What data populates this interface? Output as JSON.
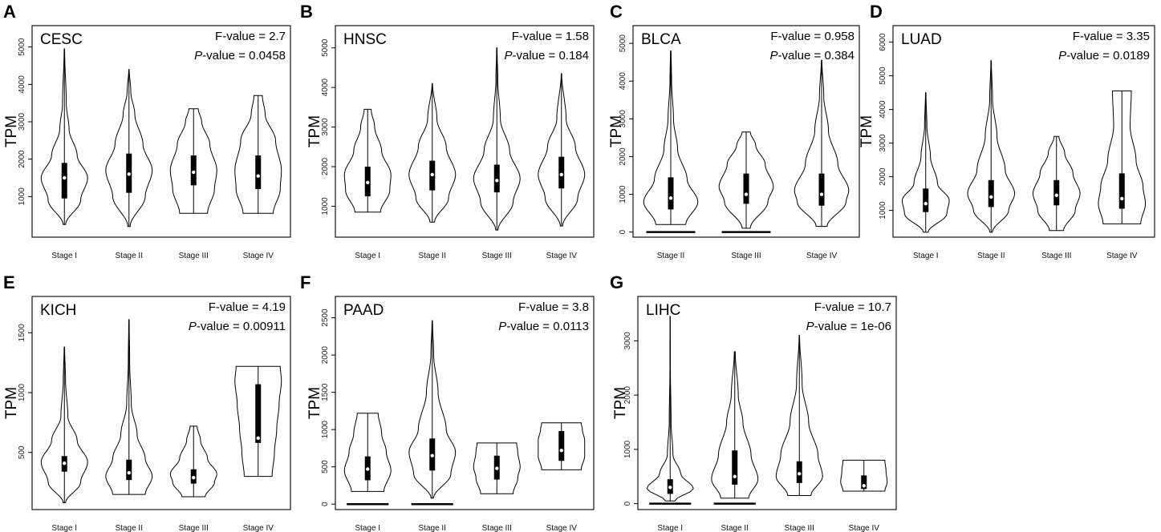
{
  "chart_data": [
    {
      "label": "A",
      "type": "violin",
      "title": "CESC",
      "f_text": "F-value = 2.7",
      "p_text": "-value = 0.0458",
      "p_italic": "P",
      "ylabel": "TPM",
      "ylim": [
        0,
        5400
      ],
      "yticks": [
        1000,
        2000,
        3000,
        4000,
        5000
      ],
      "y_tick_labels": [
        "1000",
        "2000",
        "3000",
        "4000",
        "5000"
      ],
      "categories": [
        "Stage I",
        "Stage II",
        "Stage III",
        "Stage IV"
      ],
      "groups": [
        {
          "min": 250,
          "q1": 950,
          "median": 1500,
          "q3": 1900,
          "max": 4950,
          "shape": [
            [
              250,
              0.05
            ],
            [
              900,
              0.7
            ],
            [
              1500,
              1
            ],
            [
              2100,
              0.55
            ],
            [
              2800,
              0.2
            ],
            [
              3500,
              0.08
            ],
            [
              4950,
              0.01
            ]
          ]
        },
        {
          "min": 200,
          "q1": 1100,
          "median": 1600,
          "q3": 2150,
          "max": 4400,
          "shape": [
            [
              200,
              0.05
            ],
            [
              1000,
              0.7
            ],
            [
              1700,
              1
            ],
            [
              2400,
              0.6
            ],
            [
              3200,
              0.25
            ],
            [
              3800,
              0.08
            ],
            [
              4400,
              0.01
            ]
          ]
        },
        {
          "min": 550,
          "q1": 1300,
          "median": 1650,
          "q3": 2100,
          "max": 3350,
          "shape": [
            [
              550,
              0.6
            ],
            [
              1200,
              0.9
            ],
            [
              1700,
              1
            ],
            [
              2400,
              0.7
            ],
            [
              3000,
              0.35
            ],
            [
              3350,
              0.2
            ]
          ]
        },
        {
          "min": 550,
          "q1": 1200,
          "median": 1550,
          "q3": 2100,
          "max": 3700,
          "shape": [
            [
              550,
              0.65
            ],
            [
              1200,
              0.95
            ],
            [
              1700,
              1
            ],
            [
              2500,
              0.75
            ],
            [
              3200,
              0.3
            ],
            [
              3700,
              0.18
            ]
          ]
        }
      ]
    },
    {
      "label": "B",
      "type": "violin",
      "title": "HNSC",
      "f_text": "F-value = 1.58",
      "p_text": "-value = 0.184",
      "p_italic": "P",
      "ylabel": "TPM",
      "ylim": [
        300,
        5400
      ],
      "yticks": [
        1000,
        2000,
        3000,
        4000,
        5000
      ],
      "y_tick_labels": [
        "1000",
        "2000",
        "3000",
        "4000",
        "5000"
      ],
      "categories": [
        "Stage I",
        "Stage II",
        "Stage III",
        "Stage IV"
      ],
      "groups": [
        {
          "min": 850,
          "q1": 1250,
          "median": 1600,
          "q3": 2000,
          "max": 3450,
          "shape": [
            [
              850,
              0.55
            ],
            [
              1400,
              0.95
            ],
            [
              1800,
              1
            ],
            [
              2400,
              0.6
            ],
            [
              3000,
              0.3
            ],
            [
              3450,
              0.15
            ]
          ]
        },
        {
          "min": 600,
          "q1": 1400,
          "median": 1800,
          "q3": 2150,
          "max": 4100,
          "shape": [
            [
              600,
              0.1
            ],
            [
              1200,
              0.7
            ],
            [
              1800,
              1
            ],
            [
              2500,
              0.6
            ],
            [
              3200,
              0.2
            ],
            [
              4100,
              0.01
            ]
          ]
        },
        {
          "min": 400,
          "q1": 1350,
          "median": 1650,
          "q3": 2050,
          "max": 5000,
          "shape": [
            [
              400,
              0.05
            ],
            [
              1100,
              0.7
            ],
            [
              1700,
              1
            ],
            [
              2400,
              0.55
            ],
            [
              3200,
              0.15
            ],
            [
              4200,
              0.04
            ],
            [
              5000,
              0.01
            ]
          ]
        },
        {
          "min": 500,
          "q1": 1450,
          "median": 1800,
          "q3": 2250,
          "max": 4350,
          "shape": [
            [
              500,
              0.05
            ],
            [
              1200,
              0.7
            ],
            [
              1800,
              1
            ],
            [
              2500,
              0.6
            ],
            [
              3200,
              0.2
            ],
            [
              4350,
              0.01
            ]
          ]
        }
      ]
    },
    {
      "label": "C",
      "type": "violin",
      "title": "BLCA",
      "f_text": "F-value = 0.958",
      "p_text": "-value = 0.384",
      "p_italic": "P",
      "ylabel": "TPM",
      "ylim": [
        -50,
        5300
      ],
      "yticks": [
        0,
        1000,
        2000,
        3000,
        4000,
        5000
      ],
      "y_tick_labels": [
        "0",
        "1000",
        "2000",
        "3000",
        "4000",
        "5000"
      ],
      "categories": [
        "Stage II",
        "Stage III",
        "Stage IV"
      ],
      "groups": [
        {
          "min": 200,
          "q1": 600,
          "median": 900,
          "q3": 1450,
          "max": 4800,
          "zero": true,
          "shape": [
            [
              200,
              0.55
            ],
            [
              800,
              1
            ],
            [
              1400,
              0.6
            ],
            [
              2200,
              0.25
            ],
            [
              3000,
              0.1
            ],
            [
              4000,
              0.03
            ],
            [
              4800,
              0.01
            ]
          ]
        },
        {
          "min": 100,
          "q1": 750,
          "median": 1000,
          "q3": 1550,
          "max": 2650,
          "zero": true,
          "shape": [
            [
              100,
              0.15
            ],
            [
              800,
              0.8
            ],
            [
              1200,
              1
            ],
            [
              1800,
              0.7
            ],
            [
              2300,
              0.35
            ],
            [
              2650,
              0.15
            ]
          ]
        },
        {
          "min": 150,
          "q1": 700,
          "median": 1000,
          "q3": 1550,
          "max": 4550,
          "shape": [
            [
              150,
              0.2
            ],
            [
              800,
              0.9
            ],
            [
              1100,
              1
            ],
            [
              1800,
              0.6
            ],
            [
              2700,
              0.25
            ],
            [
              3600,
              0.08
            ],
            [
              4550,
              0.01
            ]
          ]
        }
      ]
    },
    {
      "label": "D",
      "type": "violin",
      "title": "LUAD",
      "f_text": "F-value = 3.35",
      "p_text": "-value = 0.0189",
      "p_italic": "P",
      "ylabel": "TPM",
      "ylim": [
        300,
        6300
      ],
      "yticks": [
        1000,
        2000,
        3000,
        4000,
        5000,
        6000
      ],
      "y_tick_labels": [
        "1000",
        "2000",
        "3000",
        "4000",
        "5000",
        "6000"
      ],
      "categories": [
        "Stage I",
        "Stage II",
        "Stage III",
        "Stage IV"
      ],
      "groups": [
        {
          "min": 350,
          "q1": 950,
          "median": 1200,
          "q3": 1650,
          "max": 4500,
          "shape": [
            [
              350,
              0.1
            ],
            [
              900,
              0.9
            ],
            [
              1300,
              1
            ],
            [
              1800,
              0.5
            ],
            [
              2600,
              0.2
            ],
            [
              3500,
              0.05
            ],
            [
              4500,
              0.01
            ]
          ]
        },
        {
          "min": 350,
          "q1": 1100,
          "median": 1400,
          "q3": 1900,
          "max": 5450,
          "shape": [
            [
              350,
              0.05
            ],
            [
              1000,
              0.75
            ],
            [
              1500,
              1
            ],
            [
              2200,
              0.6
            ],
            [
              3200,
              0.25
            ],
            [
              4300,
              0.06
            ],
            [
              5450,
              0.01
            ]
          ]
        },
        {
          "min": 400,
          "q1": 1150,
          "median": 1450,
          "q3": 1900,
          "max": 3200,
          "shape": [
            [
              400,
              0.3
            ],
            [
              1000,
              0.8
            ],
            [
              1500,
              1
            ],
            [
              2100,
              0.7
            ],
            [
              2700,
              0.35
            ],
            [
              3200,
              0.1
            ]
          ]
        },
        {
          "min": 600,
          "q1": 1050,
          "median": 1350,
          "q3": 2100,
          "max": 4550,
          "shape": [
            [
              600,
              0.8
            ],
            [
              1200,
              1
            ],
            [
              1700,
              0.9
            ],
            [
              2500,
              0.6
            ],
            [
              3500,
              0.35
            ],
            [
              4550,
              0.4
            ]
          ]
        }
      ]
    },
    {
      "label": "E",
      "type": "violin",
      "title": "KICH",
      "f_text": "F-value = 4.19",
      "p_text": "-value = 0.00911",
      "p_italic": "P",
      "ylabel": "TPM",
      "ylim": [
        50,
        1750
      ],
      "yticks": [
        500,
        1000,
        1500
      ],
      "y_tick_labels": [
        "500",
        "1000",
        "1500"
      ],
      "categories": [
        "Stage I",
        "Stage II",
        "Stage III",
        "Stage IV"
      ],
      "groups": [
        {
          "min": 80,
          "q1": 340,
          "median": 410,
          "q3": 470,
          "max": 1380,
          "shape": [
            [
              80,
              0.05
            ],
            [
              250,
              0.7
            ],
            [
              420,
              1
            ],
            [
              600,
              0.55
            ],
            [
              800,
              0.15
            ],
            [
              1100,
              0.05
            ],
            [
              1380,
              0.01
            ]
          ]
        },
        {
          "min": 150,
          "q1": 270,
          "median": 330,
          "q3": 440,
          "max": 1610,
          "shape": [
            [
              150,
              0.7
            ],
            [
              300,
              1
            ],
            [
              450,
              0.7
            ],
            [
              650,
              0.35
            ],
            [
              900,
              0.1
            ],
            [
              1250,
              0.03
            ],
            [
              1610,
              0.01
            ]
          ]
        },
        {
          "min": 130,
          "q1": 240,
          "median": 290,
          "q3": 360,
          "max": 720,
          "shape": [
            [
              130,
              0.5
            ],
            [
              250,
              0.9
            ],
            [
              320,
              1
            ],
            [
              450,
              0.6
            ],
            [
              600,
              0.3
            ],
            [
              720,
              0.15
            ]
          ]
        },
        {
          "min": 300,
          "q1": 580,
          "median": 620,
          "q3": 1070,
          "max": 1220,
          "shape": [
            [
              300,
              0.6
            ],
            [
              500,
              0.7
            ],
            [
              700,
              0.8
            ],
            [
              900,
              0.9
            ],
            [
              1100,
              1
            ],
            [
              1220,
              0.95
            ]
          ]
        }
      ]
    },
    {
      "label": "F",
      "type": "violin",
      "title": "PAAD",
      "f_text": "F-value = 3.8",
      "p_text": "-value = 0.0113",
      "p_italic": "P",
      "ylabel": "TPM",
      "ylim": [
        -30,
        2700
      ],
      "yticks": [
        0,
        500,
        1000,
        1500,
        2000,
        2500
      ],
      "y_tick_labels": [
        "0",
        "500",
        "1000",
        "1500",
        "2000",
        "2500"
      ],
      "categories": [
        "Stage I",
        "Stage II",
        "Stage III",
        "Stage IV"
      ],
      "groups": [
        {
          "min": 170,
          "q1": 320,
          "median": 470,
          "q3": 640,
          "max": 1220,
          "zero": true,
          "shape": [
            [
              170,
              0.7
            ],
            [
              450,
              1
            ],
            [
              700,
              0.8
            ],
            [
              950,
              0.6
            ],
            [
              1220,
              0.45
            ]
          ]
        },
        {
          "min": 80,
          "q1": 450,
          "median": 650,
          "q3": 880,
          "max": 2460,
          "zero": true,
          "shape": [
            [
              80,
              0.05
            ],
            [
              400,
              0.8
            ],
            [
              700,
              1
            ],
            [
              1000,
              0.6
            ],
            [
              1500,
              0.25
            ],
            [
              2000,
              0.06
            ],
            [
              2460,
              0.01
            ]
          ]
        },
        {
          "min": 140,
          "q1": 330,
          "median": 480,
          "q3": 650,
          "max": 820,
          "shape": [
            [
              140,
              0.7
            ],
            [
              350,
              0.9
            ],
            [
              500,
              1
            ],
            [
              700,
              0.9
            ],
            [
              820,
              0.85
            ]
          ]
        },
        {
          "min": 460,
          "q1": 580,
          "median": 720,
          "q3": 980,
          "max": 1090,
          "shape": [
            [
              460,
              0.85
            ],
            [
              650,
              1
            ],
            [
              850,
              1
            ],
            [
              1000,
              0.9
            ],
            [
              1090,
              0.85
            ]
          ]
        }
      ]
    },
    {
      "label": "G",
      "type": "violin",
      "title": "LIHC",
      "f_text": "F-value = 10.7",
      "p_text": "-value = 1e-06",
      "p_italic": "P",
      "ylabel": "TPM",
      "ylim": [
        -50,
        3700
      ],
      "yticks": [
        0,
        1000,
        2000,
        3000
      ],
      "y_tick_labels": [
        "0",
        "1000",
        "2000",
        "3000"
      ],
      "categories": [
        "Stage I",
        "Stage II",
        "Stage III",
        "Stage IV"
      ],
      "groups": [
        {
          "min": 50,
          "q1": 180,
          "median": 300,
          "q3": 450,
          "max": 3450,
          "zero": true,
          "shape": [
            [
              50,
              0.2
            ],
            [
              280,
              1
            ],
            [
              550,
              0.45
            ],
            [
              900,
              0.12
            ],
            [
              1500,
              0.04
            ],
            [
              2500,
              0.01
            ],
            [
              3450,
              0.005
            ]
          ]
        },
        {
          "min": 100,
          "q1": 350,
          "median": 500,
          "q3": 980,
          "max": 2800,
          "zero": true,
          "shape": [
            [
              100,
              0.6
            ],
            [
              450,
              1
            ],
            [
              900,
              0.7
            ],
            [
              1500,
              0.35
            ],
            [
              2000,
              0.15
            ],
            [
              2800,
              0.02
            ]
          ]
        },
        {
          "min": 150,
          "q1": 380,
          "median": 550,
          "q3": 780,
          "max": 3100,
          "shape": [
            [
              150,
              0.5
            ],
            [
              500,
              1
            ],
            [
              900,
              0.8
            ],
            [
              1500,
              0.4
            ],
            [
              2200,
              0.12
            ],
            [
              3100,
              0.01
            ]
          ]
        },
        {
          "min": 230,
          "q1": 270,
          "median": 330,
          "q3": 520,
          "max": 800,
          "shape": [
            [
              230,
              0.9
            ],
            [
              400,
              1
            ],
            [
              600,
              0.95
            ],
            [
              800,
              0.9
            ]
          ]
        }
      ]
    }
  ]
}
